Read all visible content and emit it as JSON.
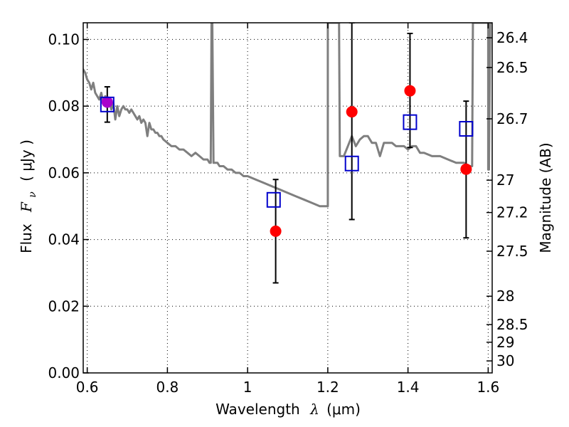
{
  "chart_data": {
    "type": "scatter",
    "xlabel": {
      "prefix": "Wavelength",
      "math": "λ",
      "unit": "(μm)"
    },
    "ylabel": {
      "prefix": "Flux",
      "math": "F",
      "sub": "ν",
      "unit": "( μJy )"
    },
    "right_ylabel": "Magnitude (AB)",
    "xlim": [
      0.59,
      1.61
    ],
    "ylim": [
      0.0,
      0.105
    ],
    "x_ticks": [
      0.6,
      0.8,
      1.0,
      1.2,
      1.4,
      1.6
    ],
    "x_tick_labels": [
      "0.6",
      "0.8",
      "1",
      "1.2",
      "1.4",
      "1.6"
    ],
    "y_ticks": [
      0.0,
      0.02,
      0.04,
      0.06,
      0.08,
      0.1
    ],
    "y_tick_labels": [
      "0.00",
      "0.02",
      "0.04",
      "0.06",
      "0.08",
      "0.10"
    ],
    "right_ticks": [
      {
        "mag": "26.4",
        "flux": 0.1005
      },
      {
        "mag": "26.5",
        "flux": 0.0916
      },
      {
        "mag": "26.7",
        "flux": 0.0762
      },
      {
        "mag": "27",
        "flux": 0.0578
      },
      {
        "mag": "27.2",
        "flux": 0.0481
      },
      {
        "mag": "27.5",
        "flux": 0.0365
      },
      {
        "mag": "28",
        "flux": 0.023
      },
      {
        "mag": "28.5",
        "flux": 0.0145
      },
      {
        "mag": "29",
        "flux": 0.0092
      },
      {
        "mag": "30",
        "flux": 0.0036
      }
    ],
    "grid": true,
    "grid_style": "dotted",
    "sed_curve": {
      "color": "#7f7f7f",
      "x": [
        0.59,
        0.595,
        0.6,
        0.605,
        0.61,
        0.615,
        0.62,
        0.625,
        0.63,
        0.635,
        0.64,
        0.645,
        0.65,
        0.655,
        0.66,
        0.665,
        0.67,
        0.675,
        0.68,
        0.685,
        0.69,
        0.695,
        0.7,
        0.705,
        0.71,
        0.715,
        0.72,
        0.725,
        0.73,
        0.735,
        0.74,
        0.745,
        0.75,
        0.755,
        0.76,
        0.765,
        0.77,
        0.775,
        0.78,
        0.785,
        0.79,
        0.8,
        0.81,
        0.82,
        0.83,
        0.84,
        0.85,
        0.86,
        0.87,
        0.88,
        0.89,
        0.9,
        0.905,
        0.908,
        0.91,
        0.912,
        0.915,
        0.918,
        0.92,
        0.925,
        0.93,
        0.94,
        0.95,
        0.96,
        0.97,
        0.98,
        0.99,
        1.0,
        1.02,
        1.04,
        1.06,
        1.08,
        1.1,
        1.12,
        1.14,
        1.16,
        1.18,
        1.195,
        1.2,
        1.2,
        1.203,
        1.212,
        1.215,
        1.222,
        1.228,
        1.23,
        1.24,
        1.25,
        1.26,
        1.27,
        1.28,
        1.29,
        1.3,
        1.31,
        1.32,
        1.33,
        1.34,
        1.35,
        1.36,
        1.37,
        1.38,
        1.39,
        1.4,
        1.41,
        1.42,
        1.43,
        1.44,
        1.46,
        1.48,
        1.5,
        1.52,
        1.54,
        1.55,
        1.56,
        1.562,
        1.565,
        1.6,
        1.6,
        1.602,
        1.605,
        1.61
      ],
      "y": [
        0.091,
        0.09,
        0.088,
        0.087,
        0.085,
        0.087,
        0.084,
        0.083,
        0.082,
        0.084,
        0.081,
        0.083,
        0.08,
        0.082,
        0.079,
        0.081,
        0.076,
        0.08,
        0.077,
        0.079,
        0.08,
        0.079,
        0.079,
        0.078,
        0.079,
        0.078,
        0.077,
        0.076,
        0.077,
        0.075,
        0.076,
        0.075,
        0.071,
        0.075,
        0.073,
        0.073,
        0.072,
        0.072,
        0.071,
        0.071,
        0.07,
        0.069,
        0.068,
        0.068,
        0.067,
        0.067,
        0.066,
        0.065,
        0.066,
        0.065,
        0.064,
        0.064,
        0.063,
        0.063,
        0.105,
        0.105,
        0.063,
        0.063,
        0.063,
        0.063,
        0.062,
        0.062,
        0.061,
        0.061,
        0.06,
        0.06,
        0.059,
        0.059,
        0.058,
        0.057,
        0.056,
        0.055,
        0.054,
        0.053,
        0.052,
        0.051,
        0.05,
        0.05,
        0.05,
        0.105,
        0.105,
        0.105,
        0.105,
        0.105,
        0.105,
        0.065,
        0.065,
        0.068,
        0.071,
        0.068,
        0.07,
        0.071,
        0.071,
        0.069,
        0.069,
        0.065,
        0.069,
        0.069,
        0.069,
        0.068,
        0.068,
        0.068,
        0.067,
        0.068,
        0.068,
        0.066,
        0.066,
        0.065,
        0.065,
        0.064,
        0.063,
        0.063,
        0.062,
        0.062,
        0.105,
        0.105,
        0.105,
        0.061,
        0.061,
        0.105,
        0.105
      ]
    },
    "observed": {
      "color": "#ff0000",
      "points": [
        {
          "x": 1.07,
          "y": 0.0425,
          "err_lo": 0.027,
          "err_hi": 0.058
        },
        {
          "x": 1.26,
          "y": 0.0783,
          "err_lo": 0.046,
          "err_hi": 0.105
        },
        {
          "x": 1.405,
          "y": 0.0846,
          "err_lo": 0.0676,
          "err_hi": 0.1018
        },
        {
          "x": 1.545,
          "y": 0.0611,
          "err_lo": 0.0405,
          "err_hi": 0.0815
        }
      ]
    },
    "optical_point": {
      "color": "#aa00cc",
      "x": 0.65,
      "y": 0.0812,
      "err_lo": 0.0752,
      "err_hi": 0.0858
    },
    "model": {
      "color": "#0000cc",
      "points": [
        {
          "x": 0.65,
          "y": 0.0805
        },
        {
          "x": 1.065,
          "y": 0.0519
        },
        {
          "x": 1.26,
          "y": 0.0628
        },
        {
          "x": 1.405,
          "y": 0.0752
        },
        {
          "x": 1.545,
          "y": 0.0732
        }
      ]
    }
  }
}
